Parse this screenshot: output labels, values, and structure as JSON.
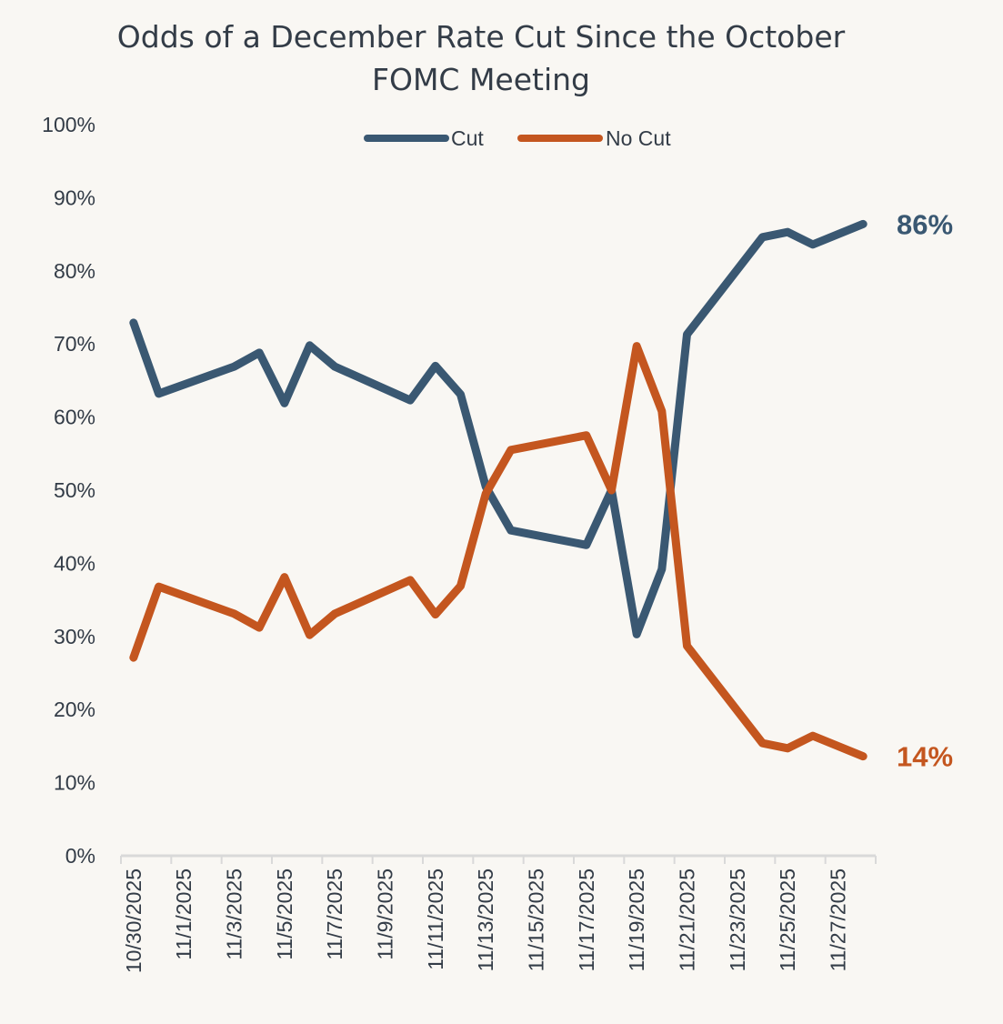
{
  "chart_data": {
    "type": "line",
    "title": "Odds of a December Rate Cut Since the October FOMC Meeting",
    "title_lines": [
      "Odds of a December Rate Cut Since the October",
      "FOMC Meeting"
    ],
    "xlabel": "",
    "ylabel": "",
    "ylim": [
      0,
      100
    ],
    "y_ticks": [
      "0%",
      "10%",
      "20%",
      "30%",
      "40%",
      "50%",
      "60%",
      "70%",
      "80%",
      "90%",
      "100%"
    ],
    "x_range": [
      "10/30/2025",
      "11/28/2025"
    ],
    "x_ticks": [
      "10/30/2025",
      "11/1/2025",
      "11/3/2025",
      "11/5/2025",
      "11/7/2025",
      "11/9/2025",
      "11/11/2025",
      "11/13/2025",
      "11/15/2025",
      "11/17/2025",
      "11/19/2025",
      "11/21/2025",
      "11/23/2025",
      "11/25/2025",
      "11/27/2025"
    ],
    "grid": false,
    "legend": "top",
    "x": [
      "10/30/2025",
      "10/31/2025",
      "11/3/2025",
      "11/4/2025",
      "11/5/2025",
      "11/6/2025",
      "11/7/2025",
      "11/10/2025",
      "11/11/2025",
      "11/12/2025",
      "11/13/2025",
      "11/14/2025",
      "11/17/2025",
      "11/18/2025",
      "11/19/2025",
      "11/20/2025",
      "11/21/2025",
      "11/24/2025",
      "11/25/2025",
      "11/26/2025",
      "11/28/2025"
    ],
    "series": [
      {
        "name": "Cut",
        "color": "#3a5872",
        "end_label": "86%",
        "values": [
          72.9,
          63.2,
          66.9,
          68.8,
          61.9,
          69.8,
          66.9,
          62.3,
          67.0,
          63.1,
          50.5,
          44.5,
          42.5,
          50.0,
          30.3,
          39.2,
          71.3,
          84.6,
          85.3,
          83.6,
          86.4
        ]
      },
      {
        "name": "No Cut",
        "color": "#c4561f",
        "end_label": "14%",
        "values": [
          27.1,
          36.8,
          33.1,
          31.2,
          38.1,
          30.2,
          33.1,
          37.7,
          33.0,
          36.9,
          49.5,
          55.5,
          57.5,
          50.0,
          69.7,
          60.8,
          28.7,
          15.4,
          14.7,
          16.4,
          13.6
        ]
      }
    ]
  }
}
